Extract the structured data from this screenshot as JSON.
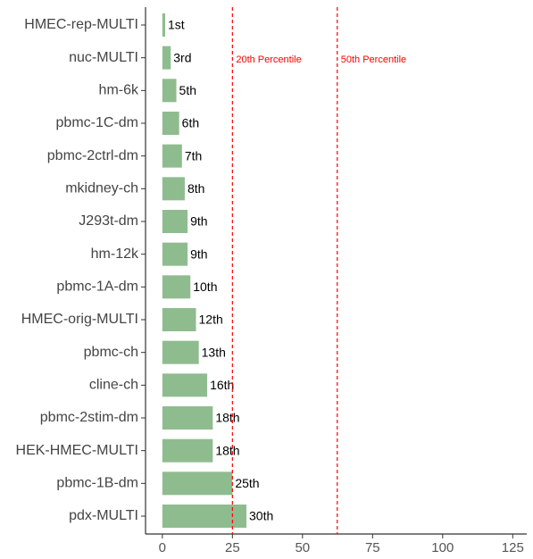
{
  "chart_data": {
    "type": "barh",
    "categories": [
      "HMEC-rep-MULTI",
      "nuc-MULTI",
      "hm-6k",
      "pbmc-1C-dm",
      "pbmc-2ctrl-dm",
      "mkidney-ch",
      "J293t-dm",
      "hm-12k",
      "pbmc-1A-dm",
      "HMEC-orig-MULTI",
      "pbmc-ch",
      "cline-ch",
      "pbmc-2stim-dm",
      "HEK-HMEC-MULTI",
      "pbmc-1B-dm",
      "pdx-MULTI"
    ],
    "values": [
      1,
      3,
      5,
      6,
      7,
      8,
      9,
      9,
      10,
      12,
      13,
      16,
      18,
      18,
      25,
      30
    ],
    "value_labels": [
      "1st",
      "3rd",
      "5th",
      "6th",
      "7th",
      "8th",
      "9th",
      "9th",
      "10th",
      "12th",
      "13th",
      "16th",
      "18th",
      "18th",
      "25th",
      "30th"
    ],
    "color": "#8fbc8f",
    "xlim": [
      -6,
      130
    ],
    "xticks": [
      0,
      25,
      50,
      75,
      100,
      125
    ],
    "reference_lines": [
      {
        "value": 25,
        "label": "20th Percentile"
      },
      {
        "value": 62.4,
        "label": "50th Percentile"
      }
    ],
    "reference_color": "#ff0000"
  }
}
